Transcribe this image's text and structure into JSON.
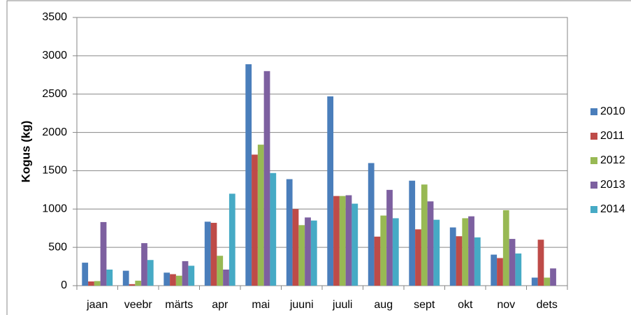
{
  "chart_data": {
    "type": "bar",
    "ylabel": "Kogus (kg)",
    "categories": [
      "jaan",
      "veebr",
      "märts",
      "apr",
      "mai",
      "juuni",
      "juuli",
      "aug",
      "sept",
      "okt",
      "nov",
      "dets"
    ],
    "series": [
      {
        "name": "2010",
        "color": "#4a7ebb",
        "values": [
          300,
          195,
          170,
          835,
          2890,
          1390,
          2470,
          1600,
          1370,
          760,
          405,
          105
        ]
      },
      {
        "name": "2011",
        "color": "#be4b48",
        "values": [
          55,
          20,
          150,
          820,
          1710,
          1000,
          1170,
          640,
          735,
          645,
          360,
          600
        ]
      },
      {
        "name": "2012",
        "color": "#98b954",
        "values": [
          60,
          65,
          130,
          390,
          1840,
          790,
          1170,
          915,
          1320,
          880,
          985,
          105
        ]
      },
      {
        "name": "2013",
        "color": "#7d60a0",
        "values": [
          830,
          555,
          320,
          210,
          2800,
          890,
          1180,
          1250,
          1100,
          905,
          610,
          225
        ]
      },
      {
        "name": "2014",
        "color": "#46aac5",
        "values": [
          210,
          335,
          260,
          1200,
          1470,
          850,
          1070,
          880,
          860,
          630,
          420,
          0
        ]
      }
    ],
    "ylim": [
      0,
      3500
    ],
    "yticks": [
      0,
      500,
      1000,
      1500,
      2000,
      2500,
      3000,
      3500
    ],
    "grid": true,
    "legend": "right"
  }
}
